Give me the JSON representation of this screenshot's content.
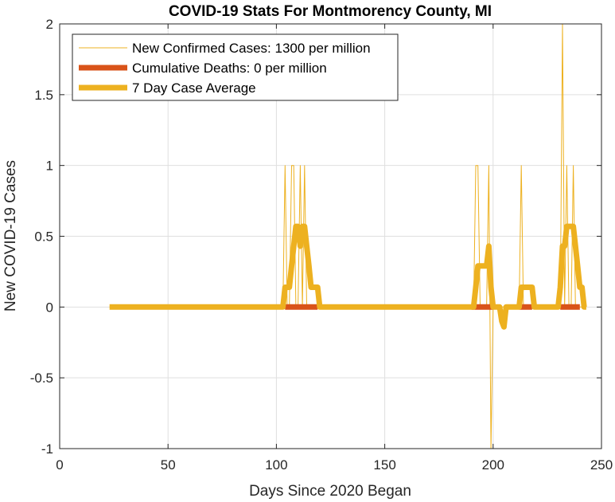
{
  "chart_data": {
    "type": "line",
    "title": "COVID-19 Stats For Montmorency County, MI",
    "xlabel": "Days Since 2020 Began",
    "ylabel": "New COVID-19 Cases",
    "xlim": [
      0,
      250
    ],
    "ylim": [
      -1,
      2
    ],
    "xticks": [
      0,
      50,
      100,
      150,
      200,
      250
    ],
    "yticks": [
      -1,
      -0.5,
      0,
      0.5,
      1,
      1.5,
      2
    ],
    "grid": true,
    "legend_position": "top-left",
    "series": [
      {
        "name": "New Confirmed Cases: 1300 per million",
        "color": "#EDB120",
        "style": "thin",
        "x": [
          23,
          103,
          104,
          105,
          106,
          107,
          108,
          109,
          110,
          111,
          112,
          113,
          114,
          115,
          190,
          191,
          192,
          193,
          194,
          195,
          196,
          197,
          198,
          199,
          200,
          204,
          205,
          206,
          211,
          212,
          213,
          214,
          215,
          230,
          231,
          232,
          233,
          234,
          235,
          236,
          237,
          238,
          243
        ],
        "y": [
          0,
          0,
          1,
          0,
          0,
          1,
          1,
          0,
          0,
          1,
          0,
          1,
          0,
          0,
          0,
          0,
          1,
          1,
          0,
          0,
          0,
          0,
          1,
          -1,
          0,
          0,
          0,
          0,
          0,
          0,
          1,
          0,
          0,
          0,
          0,
          2,
          0,
          1,
          0,
          0,
          1,
          0,
          0
        ]
      },
      {
        "name": "Cumulative Deaths: 0 per million",
        "color": "#D95319",
        "style": "thick",
        "x": [
          104,
          119,
          190,
          200,
          212,
          218,
          231,
          240
        ],
        "y": [
          0,
          0,
          0,
          0,
          0,
          0,
          0,
          0
        ]
      },
      {
        "name": "7 Day Case Average",
        "color": "#EDB120",
        "style": "thick",
        "x": [
          23,
          103,
          104,
          105,
          106,
          107,
          108,
          109,
          110,
          111,
          112,
          113,
          114,
          115,
          116,
          117,
          118,
          119,
          120,
          190,
          191,
          192,
          193,
          194,
          195,
          196,
          197,
          198,
          199,
          200,
          201,
          202,
          203,
          204,
          205,
          206,
          207,
          208,
          209,
          210,
          211,
          212,
          213,
          214,
          215,
          216,
          217,
          218,
          219,
          220,
          229,
          230,
          231,
          232,
          233,
          234,
          235,
          236,
          237,
          238,
          239,
          240,
          241,
          242,
          243
        ],
        "y": [
          0,
          0,
          0.14,
          0.14,
          0.14,
          0.29,
          0.43,
          0.57,
          0.57,
          0.43,
          0.57,
          0.57,
          0.43,
          0.29,
          0.14,
          0.14,
          0.14,
          0.14,
          0,
          0,
          0,
          0.14,
          0.29,
          0.29,
          0.29,
          0.29,
          0.29,
          0.43,
          0.14,
          0,
          0,
          0,
          0,
          -0.1,
          -0.14,
          0,
          0,
          0,
          0,
          0,
          0,
          0,
          0.14,
          0.14,
          0.14,
          0.14,
          0.14,
          0.14,
          0,
          0,
          0,
          0,
          0.14,
          0.43,
          0.43,
          0.57,
          0.57,
          0.57,
          0.57,
          0.43,
          0.29,
          0.14,
          0.14,
          0,
          0
        ]
      }
    ]
  }
}
